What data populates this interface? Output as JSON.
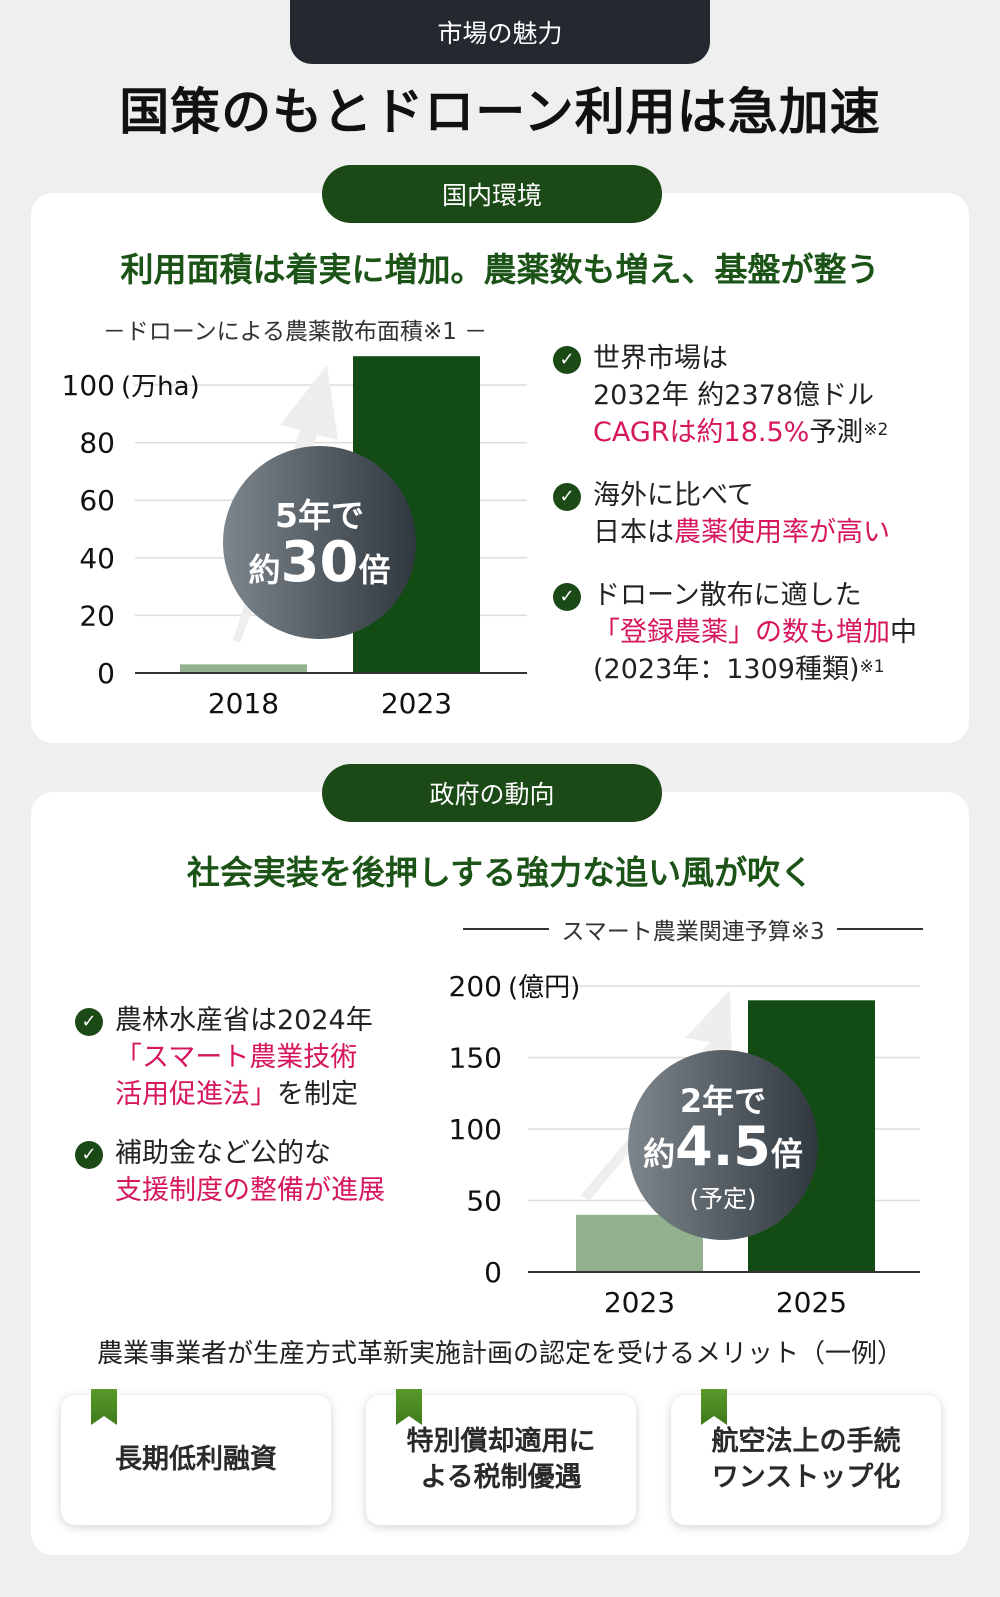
{
  "header": {
    "tab": "市場の魅力",
    "title": "国策のもとドローン利用は急加速"
  },
  "domestic": {
    "pill": "国内環境",
    "heading": "利用面積は着実に増加。農薬数も増え、基盤が整う",
    "badge": {
      "line1": "5年で",
      "prefix": "約",
      "number": "30",
      "suffix": "倍"
    },
    "bullets": [
      {
        "parts": [
          {
            "t": "世界市場は"
          },
          {
            "br": true
          },
          {
            "t": "2032年 約2378億ドル"
          },
          {
            "br": true
          },
          {
            "t": "CAGRは約18.5%",
            "red": true
          },
          {
            "t": "予測"
          },
          {
            "sup": "※2"
          }
        ]
      },
      {
        "parts": [
          {
            "t": "海外に比べて"
          },
          {
            "br": true
          },
          {
            "t": "日本は"
          },
          {
            "t": "農薬使用率が高い",
            "red": true
          }
        ]
      },
      {
        "parts": [
          {
            "t": "ドローン散布に適した"
          },
          {
            "br": true
          },
          {
            "t": "「登録農薬」の数も増加",
            "red": true
          },
          {
            "t": "中"
          },
          {
            "br": true
          },
          {
            "t": "(2023年：1309種類)"
          },
          {
            "sup": "※1"
          }
        ]
      }
    ]
  },
  "government": {
    "pill": "政府の動向",
    "heading": "社会実装を後押しする強力な追い風が吹く",
    "badge": {
      "line1": "2年で",
      "prefix": "約",
      "number": "4.5",
      "suffix": "倍",
      "note": "(予定)"
    },
    "bullets": [
      {
        "parts": [
          {
            "t": "農林水産省は2024年"
          },
          {
            "br": true
          },
          {
            "t": "「スマート農業技術",
            "red": true
          },
          {
            "br": true
          },
          {
            "t": "活用促進法」",
            "red": true
          },
          {
            "t": "を制定"
          }
        ]
      },
      {
        "parts": [
          {
            "t": "補助金など公的な"
          },
          {
            "br": true
          },
          {
            "t": "支援制度の整備が進展",
            "red": true
          }
        ]
      }
    ],
    "merits_title": "農業事業者が生産方式革新実施計画の認定を受けるメリット（一例）",
    "merits": [
      [
        "長期低利融資"
      ],
      [
        "特別償却適用に",
        "よる税制優遇"
      ],
      [
        "航空法上の手続",
        "ワンストップ化"
      ]
    ]
  },
  "colors": {
    "dark": "#23292f",
    "green": "#1c4a17",
    "bar_light": "#93b08f",
    "bar_dark": "#124b13",
    "accent_red": "#d6175e"
  },
  "chart_data": [
    {
      "type": "bar",
      "title": "－ドローンによる農薬散布面積※1 －",
      "categories": [
        "2018",
        "2023"
      ],
      "values": [
        3,
        110
      ],
      "ylabel": "(万ha)",
      "ylim": [
        0,
        100
      ],
      "yticks": [
        0,
        20,
        40,
        60,
        80,
        100
      ],
      "grid": true
    },
    {
      "type": "bar",
      "title": "スマート農業関連予算※3",
      "categories": [
        "2023",
        "2025"
      ],
      "values": [
        40,
        190
      ],
      "ylabel": "(億円)",
      "ylim": [
        0,
        200
      ],
      "yticks": [
        0,
        50,
        100,
        150,
        200
      ],
      "grid": true
    }
  ]
}
